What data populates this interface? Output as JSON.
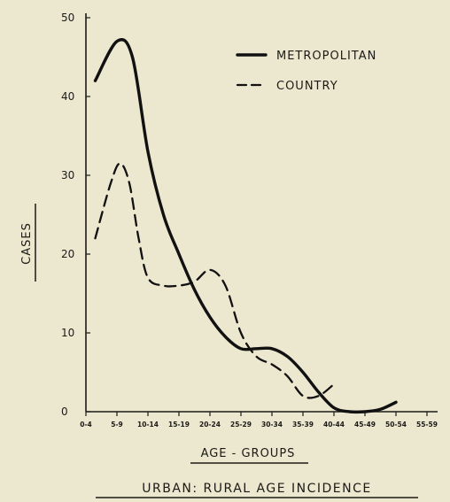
{
  "chart_data": {
    "type": "line",
    "title": "URBAN: RURAL AGE INCIDENCE",
    "xlabel": "AGE - GROUPS",
    "ylabel": "CASES",
    "ylim": [
      0,
      50
    ],
    "y_ticks": [
      0,
      10,
      20,
      30,
      40,
      50
    ],
    "categories": [
      "0-4",
      "5-9",
      "10-14",
      "15-19",
      "20-24",
      "25-29",
      "30-34",
      "35-39",
      "40-44",
      "45-49",
      "50-54",
      "55-59"
    ],
    "legend_position": "top-right",
    "grid": false,
    "series": [
      {
        "name": "METROPOLITAN",
        "style": "solid",
        "x": [
          0.3,
          1.0,
          1.5,
          2.0,
          2.5,
          3.0,
          3.5,
          4.0,
          4.5,
          5.0,
          5.5,
          6.0,
          6.5,
          7.0,
          7.5,
          8.0,
          8.5,
          9.0,
          9.5,
          10.0
        ],
        "values": [
          42,
          47,
          45,
          33,
          25,
          20,
          15.5,
          12,
          9.5,
          8,
          8,
          8,
          7,
          5,
          2.5,
          0.5,
          0,
          0,
          0.3,
          1.2
        ]
      },
      {
        "name": "COUNTRY",
        "style": "dashed",
        "x": [
          0.3,
          0.8,
          1.1,
          1.4,
          1.7,
          2.0,
          2.5,
          3.0,
          3.5,
          4.0,
          4.5,
          5.0,
          5.5,
          6.0,
          6.5,
          7.0,
          7.5,
          8.0
        ],
        "values": [
          22,
          29,
          31.5,
          29,
          22,
          17,
          16,
          16,
          16.5,
          18,
          16,
          10,
          7,
          6,
          4.5,
          2,
          2,
          3.5
        ]
      }
    ]
  }
}
